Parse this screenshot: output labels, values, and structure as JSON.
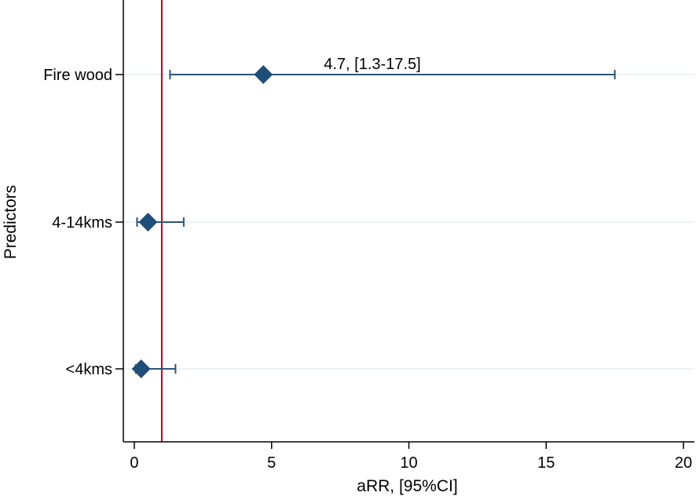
{
  "chart_data": {
    "type": "scatter",
    "subtype": "forest-plot",
    "title": "",
    "xlabel": "aRR, [95%CI]",
    "ylabel": "Predictors",
    "xlim": [
      -0.4,
      20.4
    ],
    "xticks": [
      0,
      5,
      10,
      15,
      20
    ],
    "xtick_labels": [
      "0",
      "5",
      "10",
      "15",
      "20"
    ],
    "reference_line": 1,
    "grid": "horizontal",
    "categories": [
      "Fire wood",
      "4-14kms",
      "<4kms"
    ],
    "points": [
      {
        "label": "Fire wood",
        "estimate": 4.7,
        "ci_low": 1.3,
        "ci_high": 17.5,
        "annotation": "4.7, [1.3-17.5]"
      },
      {
        "label": "4-14kms",
        "estimate": 0.5,
        "ci_low": 0.1,
        "ci_high": 1.8,
        "annotation": ""
      },
      {
        "label": "<4kms",
        "estimate": 0.25,
        "ci_low": 0.05,
        "ci_high": 1.5,
        "annotation": ""
      }
    ],
    "colors": {
      "marker": "#1f4e79",
      "ci_line": "#2b5578",
      "reference_line": "#c00020",
      "grid": "#e6eef2",
      "axis": "#000000"
    }
  }
}
